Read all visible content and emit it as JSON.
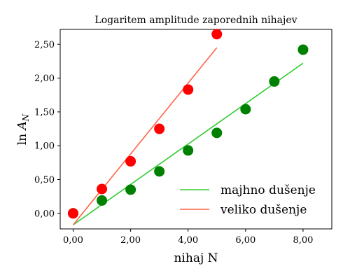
{
  "chart_data": {
    "type": "scatter",
    "title": "Logaritem amplitude zaporednih nihajev",
    "xlabel": "nihaj N",
    "ylabel": "ln A_N",
    "xlim": [
      -0.45,
      9.0
    ],
    "ylim": [
      -0.23,
      2.72
    ],
    "x_ticks": [
      0,
      2,
      4,
      6,
      8
    ],
    "x_tick_labels": [
      "0,00",
      "2,00",
      "4,00",
      "6,00",
      "8,00"
    ],
    "y_ticks": [
      0,
      0.5,
      1.0,
      1.5,
      2.0,
      2.5
    ],
    "y_tick_labels": [
      "0,00",
      "0,50",
      "1,00",
      "1,50",
      "2,00",
      "2,50"
    ],
    "grid": false,
    "legend_position": "lower-right",
    "series": [
      {
        "kind": "points",
        "color": "#008000",
        "points": [
          [
            0,
            0.0
          ],
          [
            1,
            0.19
          ],
          [
            2,
            0.35
          ],
          [
            3,
            0.62
          ],
          [
            4,
            0.93
          ],
          [
            5,
            1.19
          ],
          [
            6,
            1.54
          ],
          [
            7,
            1.95
          ],
          [
            8,
            2.42
          ]
        ]
      },
      {
        "kind": "points",
        "color": "#ff0000",
        "points": [
          [
            0,
            0.0
          ],
          [
            1,
            0.36
          ],
          [
            2,
            0.77
          ],
          [
            3,
            1.25
          ],
          [
            4,
            1.83
          ],
          [
            5,
            2.65
          ]
        ]
      },
      {
        "kind": "line",
        "name": "majhno dušenje",
        "color": "#32cd32",
        "points": [
          [
            0,
            -0.17
          ],
          [
            8,
            2.22
          ]
        ]
      },
      {
        "kind": "line",
        "name": "veliko dušenje",
        "color": "#ff6347",
        "points": [
          [
            0,
            -0.17
          ],
          [
            5,
            2.45
          ]
        ]
      }
    ]
  }
}
